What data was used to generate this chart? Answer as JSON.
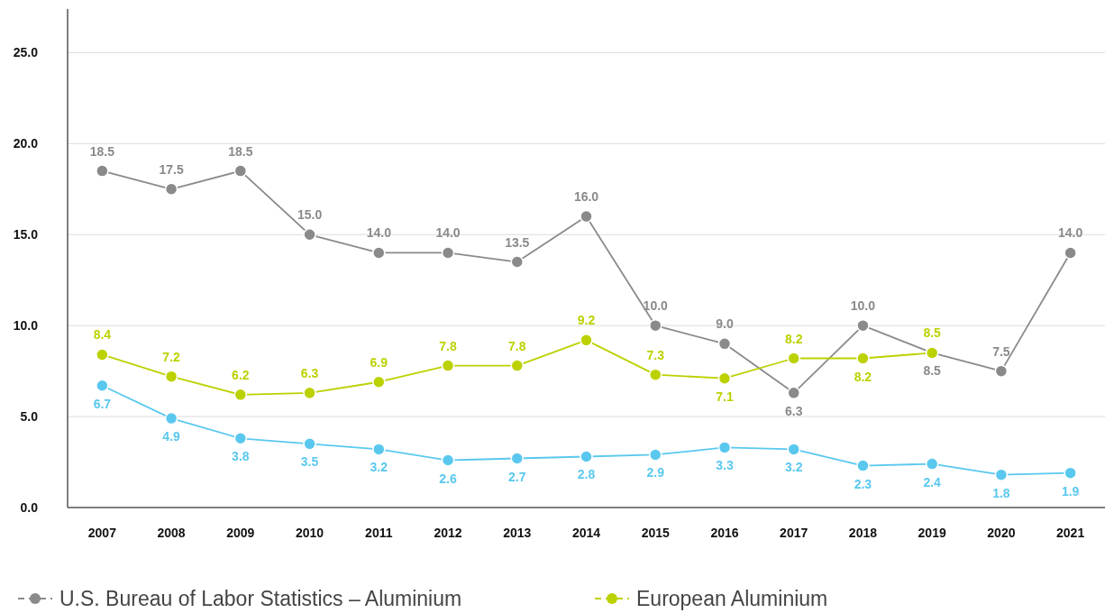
{
  "chart_data": {
    "type": "line",
    "categories": [
      "2007",
      "2008",
      "2009",
      "2010",
      "2011",
      "2012",
      "2013",
      "2014",
      "2015",
      "2016",
      "2017",
      "2018",
      "2019",
      "2020",
      "2021"
    ],
    "series": [
      {
        "name": "U.S. Bureau of Labor Statistics – Aluminium",
        "color": "#8a8a8a",
        "values": [
          18.5,
          17.5,
          18.5,
          15.0,
          14.0,
          14.0,
          13.5,
          16.0,
          10.0,
          9.0,
          6.3,
          10.0,
          8.5,
          7.5,
          14.0
        ],
        "value_labels": [
          "18.5",
          "17.5",
          "18.5",
          "15.0",
          "14.0",
          "14.0",
          "13.5",
          "16.0",
          "10.0",
          "9.0",
          "6.3",
          "10.0",
          "8.5",
          "7.5",
          "14.0"
        ]
      },
      {
        "name": "European Aluminium",
        "color": "#bcd100",
        "values": [
          8.4,
          7.2,
          6.2,
          6.3,
          6.9,
          7.8,
          7.8,
          9.2,
          7.3,
          7.1,
          8.2,
          8.2,
          8.5,
          null,
          null
        ],
        "value_labels": [
          "8.4",
          "7.2",
          "6.2",
          "6.3",
          "6.9",
          "7.8",
          "7.8",
          "9.2",
          "7.3",
          "7.1",
          "8.2",
          "8.2",
          "8.5",
          null,
          null
        ]
      },
      {
        "color": "#5ac8ee",
        "values": [
          6.7,
          4.9,
          3.8,
          3.5,
          3.2,
          2.6,
          2.7,
          2.8,
          2.9,
          3.3,
          3.2,
          2.3,
          2.4,
          1.8,
          1.9
        ],
        "value_labels": [
          "6.7",
          "4.9",
          "3.8",
          "3.5",
          "3.2",
          "2.6",
          "2.7",
          "2.8",
          "2.9",
          "3.3",
          "3.2",
          "2.3",
          "2.4",
          "1.8",
          "1.9"
        ]
      }
    ],
    "ylim": [
      0,
      27.4
    ],
    "yticks": [
      {
        "value": 0,
        "label": "0.0"
      },
      {
        "value": 5,
        "label": "5.0"
      },
      {
        "value": 10,
        "label": "10.0"
      },
      {
        "value": 15,
        "label": "15.0"
      },
      {
        "value": 20,
        "label": "20.0"
      },
      {
        "value": 25,
        "label": "25.0"
      }
    ],
    "grid": "y",
    "legend": "bottom",
    "marker": "circle",
    "line_style": "solid"
  }
}
